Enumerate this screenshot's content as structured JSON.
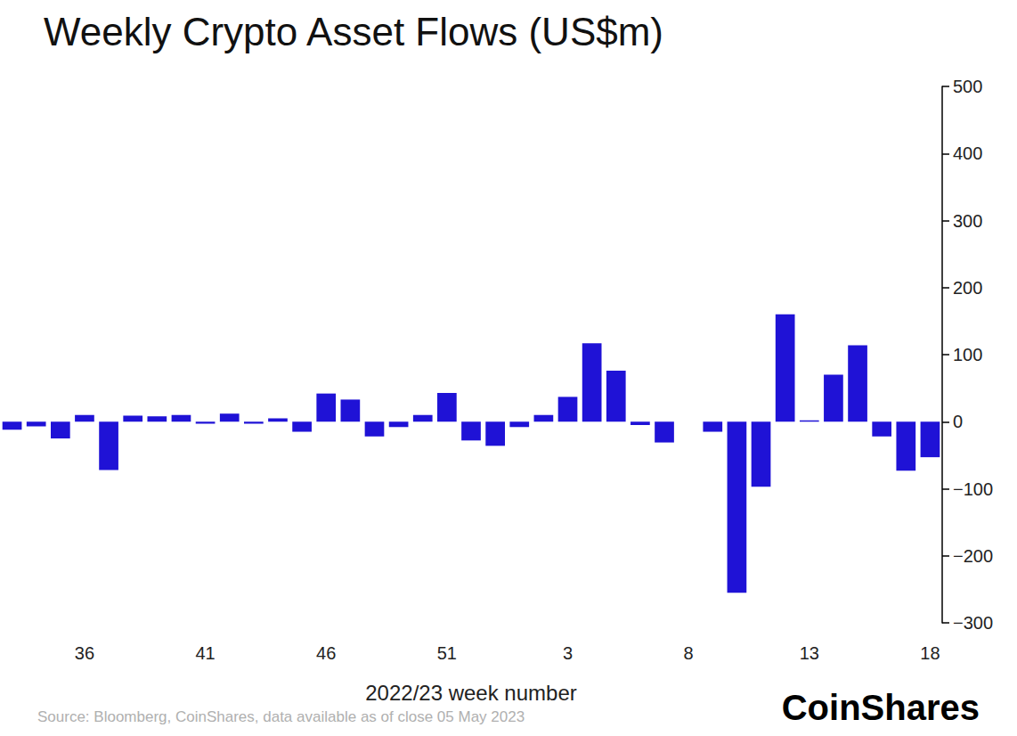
{
  "chart_data": {
    "type": "bar",
    "title": "Weekly Crypto Asset Flows (US$m)",
    "x_label": "2022/23 week number",
    "source": "Source: Bloomberg, CoinShares, data available as of close 05 May 2023",
    "logo": "CoinShares",
    "categories": [
      null,
      null,
      null,
      "36",
      null,
      null,
      null,
      null,
      "41",
      null,
      null,
      null,
      null,
      "46",
      null,
      null,
      null,
      null,
      "51",
      null,
      null,
      null,
      null,
      "3",
      null,
      null,
      null,
      null,
      "8",
      null,
      null,
      null,
      null,
      "13",
      null,
      null,
      null,
      null,
      "18"
    ],
    "values": [
      -12,
      -7,
      -25,
      10,
      -72,
      9,
      8,
      10,
      -3,
      12,
      -3,
      5,
      -15,
      42,
      33,
      -22,
      -8,
      10,
      43,
      -28,
      -36,
      -8,
      10,
      37,
      117,
      76,
      -5,
      -31,
      0,
      -15,
      -255,
      -97,
      160,
      2,
      70,
      114,
      -22,
      -73,
      -53
    ],
    "color": "#1f12d6",
    "ylim": [
      -300,
      500
    ],
    "yticks": [
      {
        "value": -300,
        "label": "−300"
      },
      {
        "value": -200,
        "label": "−200"
      },
      {
        "value": -100,
        "label": "−100"
      },
      0,
      100,
      200,
      300,
      400,
      500
    ],
    "grid": false
  }
}
